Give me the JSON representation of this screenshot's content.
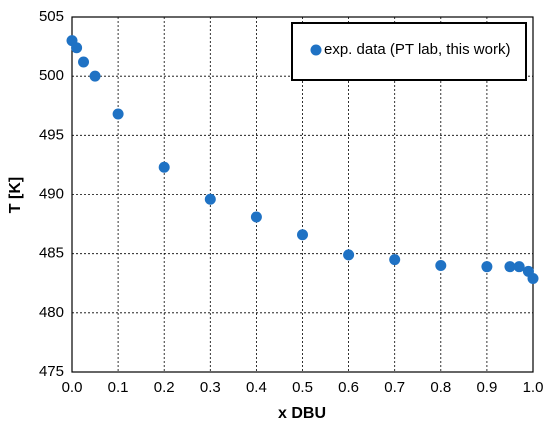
{
  "chart_data": {
    "type": "scatter",
    "x_label": "x DBU",
    "y_label": "T [K]",
    "series": [
      {
        "name": "exp. data (PT lab, this work)",
        "color": "#1f72c4",
        "x": [
          0,
          0.01,
          0.025,
          0.05,
          0.1,
          0.2,
          0.3,
          0.4,
          0.5,
          0.6,
          0.7,
          0.8,
          0.9,
          0.95,
          0.97,
          0.99,
          1.0
        ],
        "values": [
          503.0,
          502.4,
          501.2,
          500.0,
          496.8,
          492.3,
          489.6,
          488.1,
          486.6,
          484.9,
          484.5,
          484.0,
          483.9,
          483.9,
          483.9,
          483.5,
          482.9
        ]
      }
    ],
    "xlim": [
      0,
      1
    ],
    "ylim": [
      475,
      505
    ],
    "xticks": [
      {
        "value": 0,
        "label": "0.0"
      },
      0.1,
      0.2,
      0.3,
      0.4,
      0.5,
      0.6,
      0.7,
      0.8,
      0.9,
      {
        "value": 1,
        "label": "1.0"
      }
    ],
    "yticks": [
      475,
      480,
      485,
      490,
      495,
      500,
      505
    ],
    "grid": true,
    "legend": "upper right"
  }
}
